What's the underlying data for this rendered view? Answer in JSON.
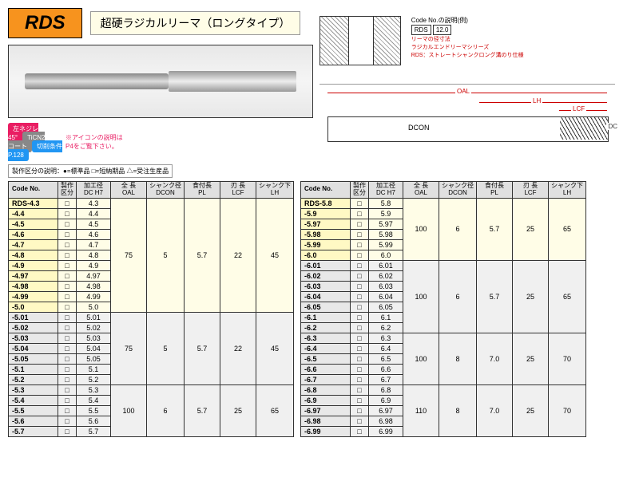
{
  "header": {
    "code": "RDS",
    "title": "超硬ラジカルリーマ（ロングタイプ）"
  },
  "badges": [
    {
      "text": "左ネジレ\n45°",
      "bg": "#e91e63"
    },
    {
      "text": "TiCN2\nコート",
      "bg": "#888"
    },
    {
      "text": "切削条件\nP.128",
      "bg": "#2196f3"
    }
  ],
  "badge_note": "※アイコンの説明は\nP4をご覧下さい。",
  "legend": "製作区分の説明：●=標準品 □=短納期品 △=受注生産品",
  "code_example": {
    "label": "Code No.の説明(例)",
    "code": "RDS",
    "val": "12.0",
    "note1": "リーマの径寸法",
    "note2": "ラジカルエンドリーマシリーズ\nRDS：ストレートシャンクロング溝のり仕様"
  },
  "diagram": {
    "oal": "OAL",
    "lh": "LH",
    "lcf": "LCF",
    "dcon": "DCON",
    "dc": "DC"
  },
  "columns": [
    "Code No.",
    "製作\n区分",
    "加工径\nDC H7",
    "全 長\nOAL",
    "シャンク径\nDCON",
    "食付長\nPL",
    "刃 長\nLCF",
    "シャンク下\nLH"
  ],
  "table1": {
    "groups": [
      {
        "hl": true,
        "rows": [
          [
            "RDS-4.3",
            "□",
            "4.3"
          ],
          [
            "-4.4",
            "□",
            "4.4"
          ],
          [
            "-4.5",
            "□",
            "4.5"
          ],
          [
            "-4.6",
            "□",
            "4.6"
          ],
          [
            "-4.7",
            "□",
            "4.7"
          ],
          [
            "-4.8",
            "□",
            "4.8"
          ],
          [
            "-4.9",
            "□",
            "4.9"
          ],
          [
            "-4.97",
            "□",
            "4.97"
          ],
          [
            "-4.98",
            "□",
            "4.98"
          ],
          [
            "-4.99",
            "□",
            "4.99"
          ],
          [
            "-5.0",
            "□",
            "5.0"
          ]
        ],
        "oal": "75",
        "dcon": "5",
        "pl": "5.7",
        "lcf": "22",
        "lh": "45"
      },
      {
        "hl": false,
        "rows": [
          [
            "-5.01",
            "□",
            "5.01"
          ],
          [
            "-5.02",
            "□",
            "5.02"
          ],
          [
            "-5.03",
            "□",
            "5.03"
          ],
          [
            "-5.04",
            "□",
            "5.04"
          ],
          [
            "-5.05",
            "□",
            "5.05"
          ],
          [
            "-5.1",
            "□",
            "5.1"
          ],
          [
            "-5.2",
            "□",
            "5.2"
          ]
        ],
        "oal": "75",
        "dcon": "5",
        "pl": "5.7",
        "lcf": "22",
        "lh": "45"
      },
      {
        "hl": false,
        "rows": [
          [
            "-5.3",
            "□",
            "5.3"
          ],
          [
            "-5.4",
            "□",
            "5.4"
          ],
          [
            "-5.5",
            "□",
            "5.5"
          ],
          [
            "-5.6",
            "□",
            "5.6"
          ],
          [
            "-5.7",
            "□",
            "5.7"
          ]
        ],
        "oal": "100",
        "dcon": "6",
        "pl": "5.7",
        "lcf": "25",
        "lh": "65"
      }
    ]
  },
  "table2": {
    "groups": [
      {
        "hl": true,
        "rows": [
          [
            "RDS-5.8",
            "□",
            "5.8"
          ],
          [
            "-5.9",
            "□",
            "5.9"
          ],
          [
            "-5.97",
            "□",
            "5.97"
          ],
          [
            "-5.98",
            "□",
            "5.98"
          ],
          [
            "-5.99",
            "□",
            "5.99"
          ],
          [
            "-6.0",
            "□",
            "6.0"
          ]
        ],
        "oal": "100",
        "dcon": "6",
        "pl": "5.7",
        "lcf": "25",
        "lh": "65"
      },
      {
        "hl": false,
        "rows": [
          [
            "-6.01",
            "□",
            "6.01"
          ],
          [
            "-6.02",
            "□",
            "6.02"
          ],
          [
            "-6.03",
            "□",
            "6.03"
          ],
          [
            "-6.04",
            "□",
            "6.04"
          ],
          [
            "-6.05",
            "□",
            "6.05"
          ],
          [
            "-6.1",
            "□",
            "6.1"
          ],
          [
            "-6.2",
            "□",
            "6.2"
          ]
        ],
        "oal": "100",
        "dcon": "6",
        "pl": "5.7",
        "lcf": "25",
        "lh": "65"
      },
      {
        "hl": false,
        "rows": [
          [
            "-6.3",
            "□",
            "6.3"
          ],
          [
            "-6.4",
            "□",
            "6.4"
          ],
          [
            "-6.5",
            "□",
            "6.5"
          ],
          [
            "-6.6",
            "□",
            "6.6"
          ],
          [
            "-6.7",
            "□",
            "6.7"
          ]
        ],
        "oal": "100",
        "dcon": "8",
        "pl": "7.0",
        "lcf": "25",
        "lh": "70"
      },
      {
        "hl": false,
        "rows": [
          [
            "-6.8",
            "□",
            "6.8"
          ],
          [
            "-6.9",
            "□",
            "6.9"
          ],
          [
            "-6.97",
            "□",
            "6.97"
          ],
          [
            "-6.98",
            "□",
            "6.98"
          ],
          [
            "-6.99",
            "□",
            "6.99"
          ]
        ],
        "oal": "110",
        "dcon": "8",
        "pl": "7.0",
        "lcf": "25",
        "lh": "70"
      }
    ]
  }
}
